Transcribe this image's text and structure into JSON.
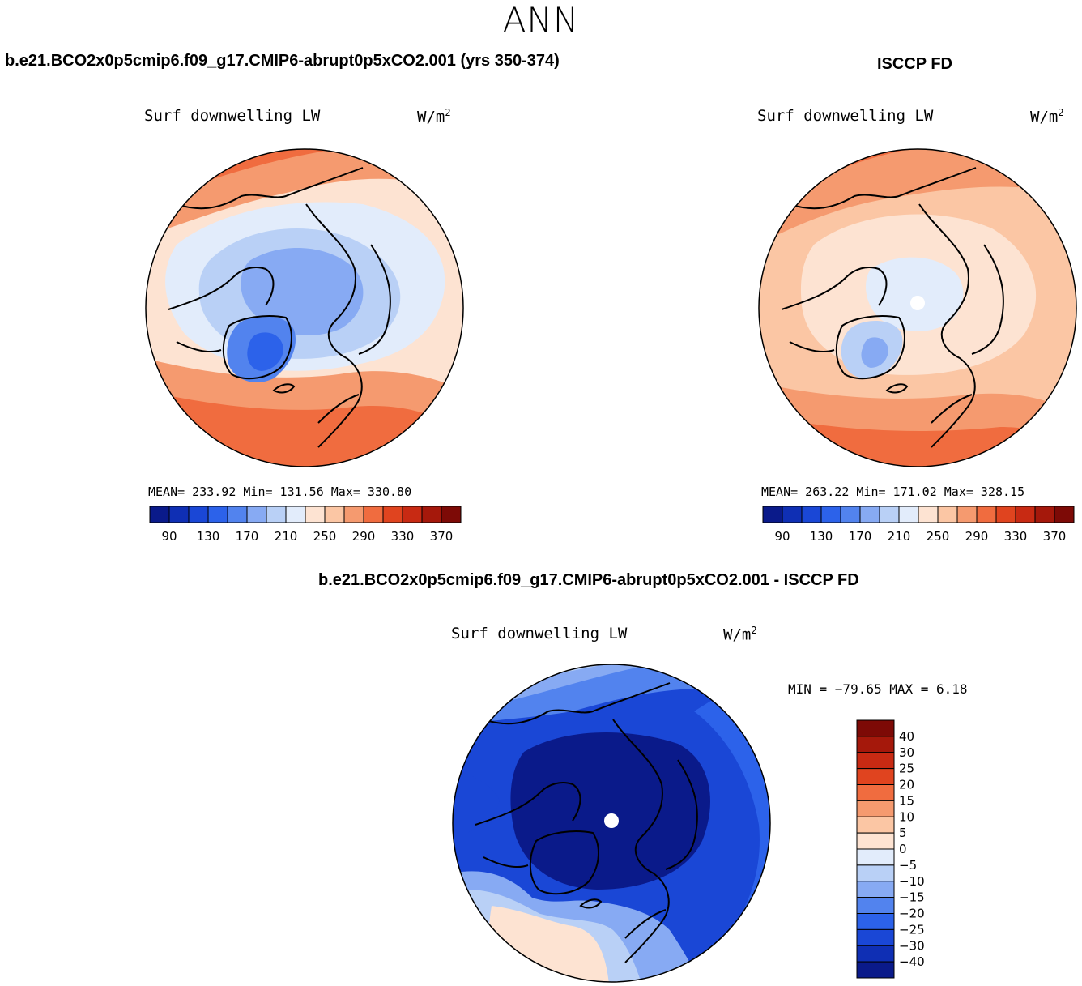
{
  "season": "ANN",
  "colors": {
    "abs_scale": [
      "#0a1a8a",
      "#0f2fb4",
      "#1a47d6",
      "#2c62ea",
      "#5283ee",
      "#87aaf3",
      "#b9d0f6",
      "#e2ecfb",
      "#fde3d2",
      "#fbc6a4",
      "#f59a6f",
      "#f06c3f",
      "#e0441f",
      "#c82a13",
      "#a5180b",
      "#7d0a06"
    ],
    "diff_scale": [
      "#0a1a8a",
      "#0f2fb4",
      "#1a47d6",
      "#2c62ea",
      "#5283ee",
      "#87aaf3",
      "#b9d0f6",
      "#e2ecfb",
      "#fde3d2",
      "#fbc6a4",
      "#f59a6f",
      "#f06c3f",
      "#e0441f",
      "#c82a13",
      "#a5180b",
      "#7d0a06"
    ]
  },
  "panels": {
    "left": {
      "title": "b.e21.BCO2x0p5cmip6.f09_g17.CMIP6-abrupt0p5xCO2.001 (yrs 350-374)",
      "variable": "Surf downwelling LW",
      "units": "W/m",
      "units_exp": "2",
      "stats": "MEAN= 233.92   Min= 131.56   Max= 330.80",
      "mean": 233.92,
      "min": 131.56,
      "max": 330.8
    },
    "right": {
      "title": "ISCCP FD",
      "variable": "Surf downwelling LW",
      "units": "W/m",
      "units_exp": "2",
      "stats": "MEAN= 263.22   Min= 171.02   Max= 328.15",
      "mean": 263.22,
      "min": 171.02,
      "max": 328.15
    },
    "diff": {
      "title": "b.e21.BCO2x0p5cmip6.f09_g17.CMIP6-abrupt0p5xCO2.001 - ISCCP FD",
      "variable": "Surf downwelling LW",
      "units": "W/m",
      "units_exp": "2",
      "stats": "MIN = −79.65 MAX =    6.18",
      "min": -79.65,
      "max": 6.18
    }
  },
  "chart_data": [
    {
      "type": "heatmap",
      "title": "b.e21.BCO2x0p5cmip6.f09_g17.CMIP6-abrupt0p5xCO2.001 (yrs 350-374)",
      "projection": "north polar stereographic",
      "variable": "Surf downwelling LW",
      "units": "W/m2",
      "colorbar_levels": [
        90,
        110,
        130,
        150,
        170,
        190,
        210,
        230,
        250,
        270,
        290,
        310,
        330,
        350,
        370
      ],
      "colorbar_labels": [
        "90",
        "130",
        "170",
        "210",
        "250",
        "290",
        "330",
        "370"
      ],
      "mean": 233.92,
      "min": 131.56,
      "max": 330.8
    },
    {
      "type": "heatmap",
      "title": "ISCCP FD",
      "projection": "north polar stereographic",
      "variable": "Surf downwelling LW",
      "units": "W/m2",
      "colorbar_levels": [
        90,
        110,
        130,
        150,
        170,
        190,
        210,
        230,
        250,
        270,
        290,
        310,
        330,
        350,
        370
      ],
      "colorbar_labels": [
        "90",
        "130",
        "170",
        "210",
        "250",
        "290",
        "330",
        "370"
      ],
      "mean": 263.22,
      "min": 171.02,
      "max": 328.15
    },
    {
      "type": "heatmap",
      "title": "b.e21.BCO2x0p5cmip6.f09_g17.CMIP6-abrupt0p5xCO2.001 - ISCCP FD",
      "projection": "north polar stereographic",
      "variable": "Surf downwelling LW",
      "units": "W/m2",
      "colorbar_levels": [
        -40,
        -30,
        -25,
        -20,
        -15,
        -10,
        -5,
        0,
        5,
        10,
        15,
        20,
        25,
        30,
        40
      ],
      "colorbar_labels": [
        "40",
        "30",
        "25",
        "20",
        "15",
        "10",
        "5",
        "0",
        "−5",
        "−10",
        "−15",
        "−20",
        "−25",
        "−30",
        "−40"
      ],
      "min": -79.65,
      "max": 6.18
    }
  ]
}
